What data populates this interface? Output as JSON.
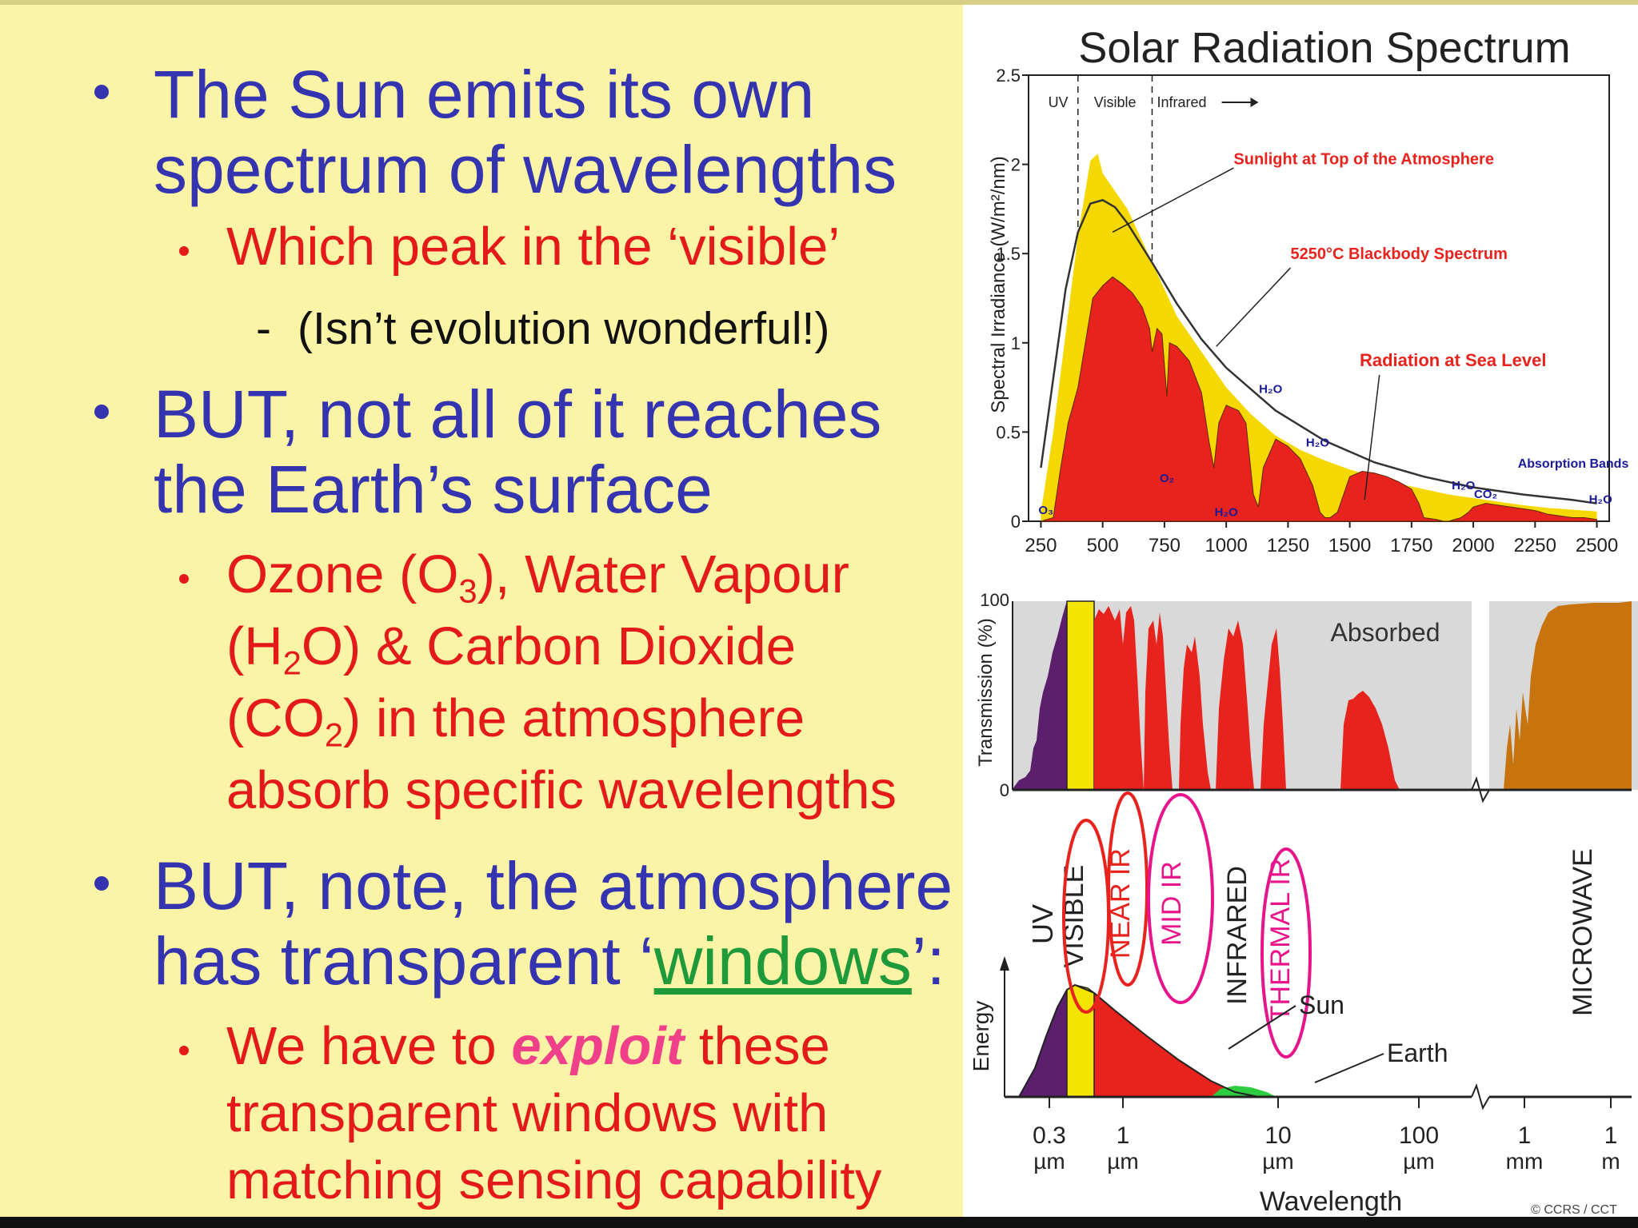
{
  "slide": {
    "bullet1": {
      "line1": "The Sun emits its own",
      "line2": "spectrum of wavelengths",
      "sub": "Which peak in the ‘visible’",
      "subsub": "(Isn’t evolution wonderful!)",
      "dash": "-"
    },
    "bullet2": {
      "line1": "BUT, not all of it reaches",
      "line2": "the Earth’s surface",
      "sub": {
        "l1_a": "Ozone (O",
        "l1_sub": "3",
        "l1_b": "), Water Vapour",
        "l2_a": "(H",
        "l2_sub": "2",
        "l2_b": "O) & Carbon Dioxide",
        "l3_a": "(CO",
        "l3_sub": "2",
        "l3_b": ") in the atmosphere",
        "l4": "absorb specific wavelengths"
      }
    },
    "bullet3": {
      "line1": "BUT, note, the atmosphere",
      "line2_a": "has transparent ‘",
      "line2_link": "windows",
      "line2_b": "’:",
      "sub": {
        "l1_a": "We have to ",
        "l1_em": "exploit",
        "l1_b": " these",
        "l2": "transparent windows with",
        "l3": "matching sensing capability"
      }
    }
  },
  "colors": {
    "background": "#fbf3a6",
    "bullet_blue": "#3434b0",
    "sub_red": "#e41a1a",
    "window_green": "#1e9a3a",
    "exploit_pink": "#f0408a",
    "toa_yellow": "#f5d800",
    "sea_red": "#e8221c",
    "absorbed_gray": "#d9d9d9",
    "uv_purple": "#5b1f6e",
    "microwave_brown": "#c8740e"
  },
  "chart_data": [
    {
      "type": "area",
      "title": "Solar Radiation Spectrum",
      "xlabel": "",
      "ylabel": "Spectral Irradiance (W/m²/nm)",
      "xlim": [
        200,
        2550
      ],
      "ylim": [
        0,
        2.5
      ],
      "xticks": [
        250,
        500,
        750,
        1000,
        1250,
        1500,
        1750,
        2000,
        2250,
        2500
      ],
      "yticks": [
        {
          "v": 0,
          "label": "0"
        },
        {
          "v": 0.5,
          "label": "0.5"
        },
        {
          "v": 1,
          "label": "1"
        },
        {
          "v": 1.5,
          "label": "1.5"
        },
        {
          "v": 2,
          "label": "2"
        },
        {
          "v": 2.5,
          "label": "2.5"
        }
      ],
      "bands": [
        "UV",
        "Visible",
        "Infrared"
      ],
      "band_boundaries_nm": [
        400,
        700
      ],
      "series": [
        {
          "name": "Sunlight at Top of the Atmosphere",
          "x": [
            250,
            300,
            350,
            400,
            450,
            480,
            500,
            550,
            600,
            650,
            700,
            800,
            900,
            1000,
            1100,
            1200,
            1300,
            1400,
            1500,
            1600,
            1700,
            1800,
            1900,
            2000,
            2100,
            2200,
            2300,
            2400,
            2500
          ],
          "y": [
            0.05,
            0.5,
            1.05,
            1.6,
            2.02,
            2.06,
            1.95,
            1.85,
            1.75,
            1.6,
            1.45,
            1.15,
            0.95,
            0.75,
            0.6,
            0.48,
            0.4,
            0.34,
            0.29,
            0.25,
            0.21,
            0.18,
            0.15,
            0.13,
            0.11,
            0.09,
            0.075,
            0.065,
            0.055
          ]
        },
        {
          "name": "5250°C Blackbody Spectrum",
          "x": [
            250,
            300,
            350,
            400,
            450,
            500,
            550,
            600,
            700,
            800,
            900,
            1000,
            1200,
            1400,
            1600,
            1800,
            2000,
            2200,
            2400,
            2500
          ],
          "y": [
            0.3,
            0.8,
            1.3,
            1.62,
            1.78,
            1.8,
            1.76,
            1.67,
            1.45,
            1.22,
            1.02,
            0.86,
            0.62,
            0.45,
            0.33,
            0.25,
            0.19,
            0.15,
            0.12,
            0.1
          ]
        },
        {
          "name": "Radiation at Sea Level",
          "x": [
            250,
            300,
            330,
            360,
            400,
            430,
            460,
            500,
            540,
            580,
            620,
            660,
            690,
            700,
            720,
            740,
            760,
            770,
            800,
            850,
            900,
            930,
            950,
            970,
            1000,
            1050,
            1080,
            1110,
            1130,
            1150,
            1200,
            1250,
            1300,
            1350,
            1380,
            1400,
            1420,
            1450,
            1500,
            1550,
            1600,
            1650,
            1700,
            1750,
            1780,
            1800,
            1850,
            1880,
            1900,
            1950,
            1980,
            2000,
            2050,
            2100,
            2150,
            2200,
            2250,
            2300,
            2350,
            2400,
            2450,
            2500
          ],
          "y": [
            0,
            0.02,
            0.3,
            0.55,
            0.75,
            1.0,
            1.25,
            1.32,
            1.37,
            1.33,
            1.28,
            1.2,
            1.08,
            0.95,
            1.08,
            1.05,
            0.7,
            1.0,
            0.98,
            0.9,
            0.72,
            0.45,
            0.3,
            0.55,
            0.65,
            0.62,
            0.55,
            0.15,
            0.08,
            0.3,
            0.46,
            0.42,
            0.35,
            0.2,
            0.05,
            0.02,
            0.02,
            0.05,
            0.25,
            0.28,
            0.27,
            0.25,
            0.22,
            0.18,
            0.1,
            0.02,
            0.01,
            0.0,
            0.0,
            0.02,
            0.05,
            0.08,
            0.1,
            0.09,
            0.08,
            0.07,
            0.06,
            0.04,
            0.03,
            0.02,
            0.02,
            0.01
          ]
        }
      ],
      "annotations": [
        {
          "text": "Sunlight at Top of the Atmosphere",
          "x": 1030,
          "y": 2.0
        },
        {
          "text": "5250°C Blackbody Spectrum",
          "x": 1260,
          "y": 1.47
        },
        {
          "text": "Radiation at Sea Level",
          "x": 1540,
          "y": 0.87
        },
        {
          "text": "Absorption Bands",
          "x": 2180,
          "y": 0.3
        },
        {
          "text": "H₂O",
          "x": 1180,
          "y": 0.72
        },
        {
          "text": "H₂O",
          "x": 1370,
          "y": 0.42
        },
        {
          "text": "H₂O",
          "x": 1000,
          "y": 0.03
        },
        {
          "text": "O₂",
          "x": 760,
          "y": 0.22
        },
        {
          "text": "O₃",
          "x": 270,
          "y": 0.04
        },
        {
          "text": "H₂O",
          "x": 1960,
          "y": 0.18
        },
        {
          "text": "CO₂",
          "x": 2050,
          "y": 0.13
        },
        {
          "text": "H₂O",
          "x": 2515,
          "y": 0.1
        }
      ]
    },
    {
      "type": "area",
      "ylabel": "Transmission (%)",
      "ylim": [
        0,
        100
      ],
      "yticks": [
        {
          "v": 0,
          "label": "0"
        },
        {
          "v": 100,
          "label": "100"
        }
      ],
      "absorbed_label": "Absorbed",
      "regions": [
        {
          "name": "UV",
          "color_key": "uv_purple"
        },
        {
          "name": "Visible",
          "color_key": "toa_yellow"
        },
        {
          "name": "Infrared",
          "color_key": "sea_red"
        },
        {
          "name": "Microwave",
          "color_key": "microwave_brown"
        }
      ]
    },
    {
      "type": "area",
      "ylabel": "Energy",
      "xlabel": "Wavelength",
      "xticks": [
        {
          "value": "0.3",
          "unit": "µm"
        },
        {
          "value": "1",
          "unit": "µm"
        },
        {
          "value": "10",
          "unit": "µm"
        },
        {
          "value": "100",
          "unit": "µm"
        },
        {
          "value": "1",
          "unit": "mm"
        },
        {
          "value": "1",
          "unit": "m"
        }
      ],
      "curve_labels": [
        "Sun",
        "Earth"
      ],
      "band_labels": [
        "UV",
        "VISIBLE",
        "NEAR IR",
        "MID IR",
        "INFRARED",
        "THERMAL IR",
        "MICROWAVE"
      ],
      "circled": [
        "VISIBLE",
        "NEAR IR",
        "MID IR",
        "THERMAL IR"
      ],
      "credit": "© CCRS / CCT"
    }
  ]
}
